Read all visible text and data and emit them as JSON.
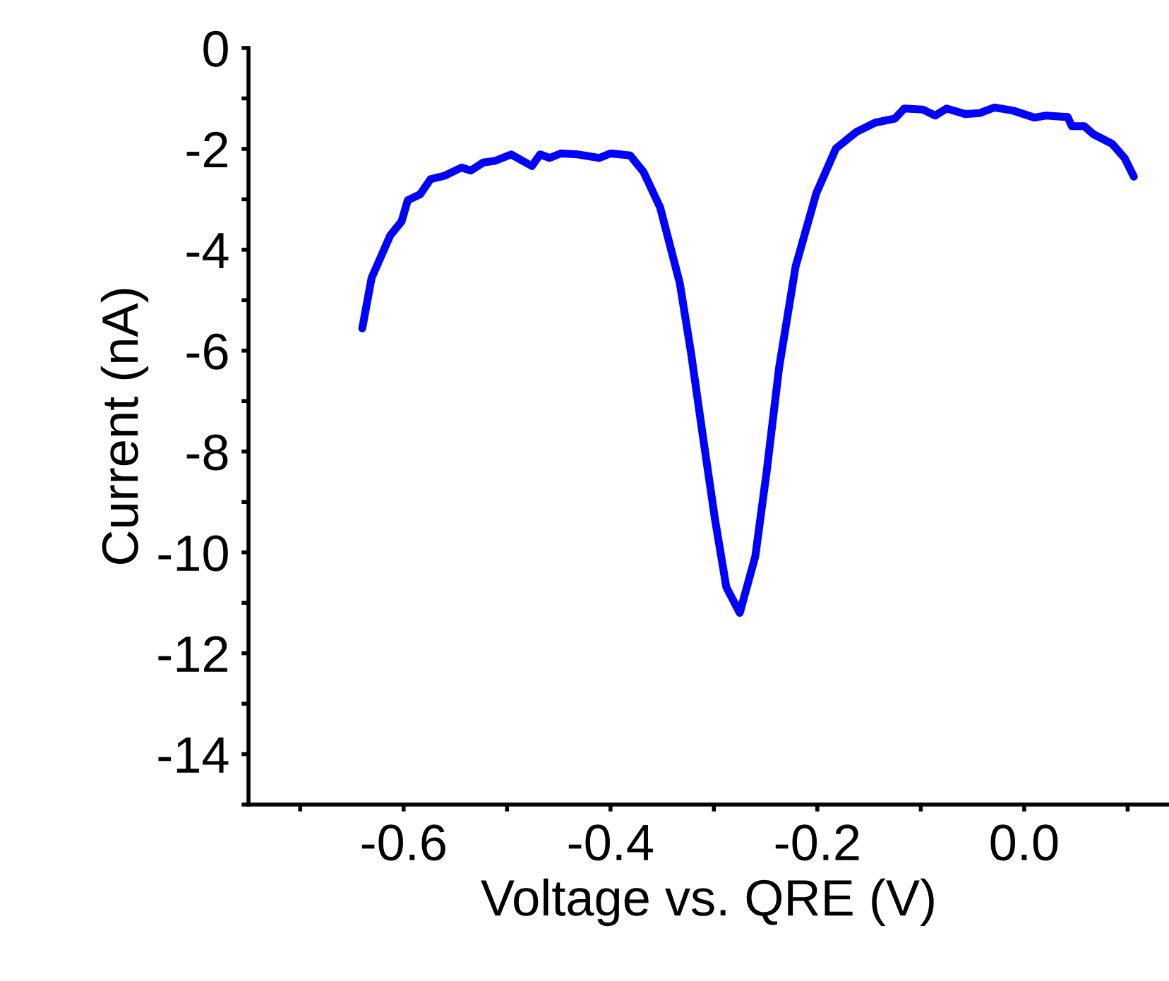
{
  "chart_data": {
    "type": "line",
    "xlabel": "Voltage vs. QRE (V)",
    "ylabel": "Current (nA)",
    "xlim": [
      -0.75,
      0.14
    ],
    "ylim": [
      -15,
      0
    ],
    "xticks": [
      {
        "value": -0.7,
        "label": null
      },
      -0.6,
      {
        "value": -0.5,
        "label": null
      },
      -0.4,
      {
        "value": -0.3,
        "label": null
      },
      -0.2,
      {
        "value": -0.1,
        "label": null
      },
      {
        "value": 0,
        "label": "0.0"
      },
      {
        "value": 0.1,
        "label": null
      }
    ],
    "yticks": [
      {
        "value": -15,
        "label": null
      },
      -14,
      {
        "value": -13,
        "label": null
      },
      -12,
      {
        "value": -11,
        "label": null
      },
      -10,
      {
        "value": -9,
        "label": null
      },
      -8,
      {
        "value": -7,
        "label": null
      },
      -6,
      {
        "value": -5,
        "label": null
      },
      -4,
      {
        "value": -3,
        "label": null
      },
      -2,
      {
        "value": -1,
        "label": null
      },
      0
    ],
    "grid": false,
    "legend": false,
    "marker": "none",
    "line_style": "solid",
    "series": [
      {
        "color": "#0000ff",
        "x": [
          -0.64,
          -0.631,
          -0.613,
          -0.602,
          -0.596,
          -0.584,
          -0.574,
          -0.56,
          -0.544,
          -0.535,
          -0.523,
          -0.512,
          -0.496,
          -0.476,
          -0.468,
          -0.459,
          -0.448,
          -0.432,
          -0.411,
          -0.4,
          -0.381,
          -0.368,
          -0.352,
          -0.333,
          -0.322,
          -0.311,
          -0.299,
          -0.288,
          -0.275,
          -0.26,
          -0.249,
          -0.237,
          -0.221,
          -0.201,
          -0.182,
          -0.162,
          -0.144,
          -0.125,
          -0.116,
          -0.098,
          -0.086,
          -0.075,
          -0.057,
          -0.043,
          -0.029,
          -0.011,
          0.01,
          0.021,
          0.042,
          0.046,
          0.058,
          0.067,
          0.085,
          0.097,
          0.106
        ],
        "values": [
          -5.56,
          -4.56,
          -3.72,
          -3.44,
          -3.02,
          -2.9,
          -2.6,
          -2.53,
          -2.37,
          -2.43,
          -2.27,
          -2.24,
          -2.11,
          -2.34,
          -2.11,
          -2.18,
          -2.09,
          -2.11,
          -2.18,
          -2.09,
          -2.13,
          -2.46,
          -3.16,
          -4.66,
          -6.06,
          -7.65,
          -9.34,
          -10.69,
          -11.2,
          -10.08,
          -8.4,
          -6.34,
          -4.33,
          -2.88,
          -1.99,
          -1.66,
          -1.48,
          -1.4,
          -1.2,
          -1.22,
          -1.34,
          -1.2,
          -1.31,
          -1.29,
          -1.18,
          -1.24,
          -1.38,
          -1.34,
          -1.37,
          -1.55,
          -1.55,
          -1.71,
          -1.9,
          -2.18,
          -2.55
        ]
      }
    ]
  }
}
